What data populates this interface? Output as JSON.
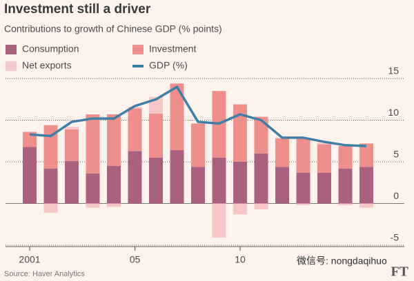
{
  "chart_data": {
    "type": "bar",
    "stacked": true,
    "title": "Investment still a driver",
    "subtitle": "Contributions to growth of Chinese GDP (% points)",
    "source": "Source: Haver Analytics",
    "logo": "FT",
    "watermark": "微信号: nongdaqihuo",
    "categories": [
      "2001",
      null,
      null,
      null,
      null,
      "05",
      null,
      null,
      null,
      null,
      "10",
      null,
      null,
      null,
      null,
      null,
      null
    ],
    "series": [
      {
        "name": "Consumption",
        "color": "#a9617f",
        "values": [
          6.8,
          4.2,
          5.1,
          3.6,
          4.5,
          6.3,
          5.5,
          6.4,
          4.4,
          5.5,
          5.0,
          6.0,
          4.4,
          3.7,
          3.7,
          4.2,
          4.4
        ]
      },
      {
        "name": "Investment",
        "color": "#ee8f8b",
        "values": [
          1.8,
          5.2,
          3.8,
          7.1,
          6.2,
          5.1,
          5.3,
          8.0,
          5.2,
          8.0,
          6.9,
          4.4,
          3.4,
          4.2,
          3.4,
          2.7,
          2.8
        ]
      },
      {
        "name": "Net exports",
        "color": "#f7c6c7",
        "values": [
          0,
          -1.1,
          0.3,
          -0.5,
          -0.4,
          0.2,
          2.0,
          0,
          0,
          -4.1,
          -1.3,
          -0.7,
          0.1,
          -0.2,
          0.2,
          -0.2,
          -0.5
        ]
      },
      {
        "name": "GDP (%)",
        "type": "line",
        "color": "#3e7fa8",
        "values": [
          8.3,
          8.1,
          9.8,
          10.2,
          10.2,
          11.7,
          12.5,
          14.0,
          9.8,
          9.6,
          10.7,
          10.0,
          7.9,
          7.9,
          7.4,
          7.0,
          6.9
        ]
      }
    ],
    "ylim": [
      -5,
      15
    ],
    "yticks": [
      -5,
      0,
      5,
      10,
      15
    ],
    "grid": true
  }
}
